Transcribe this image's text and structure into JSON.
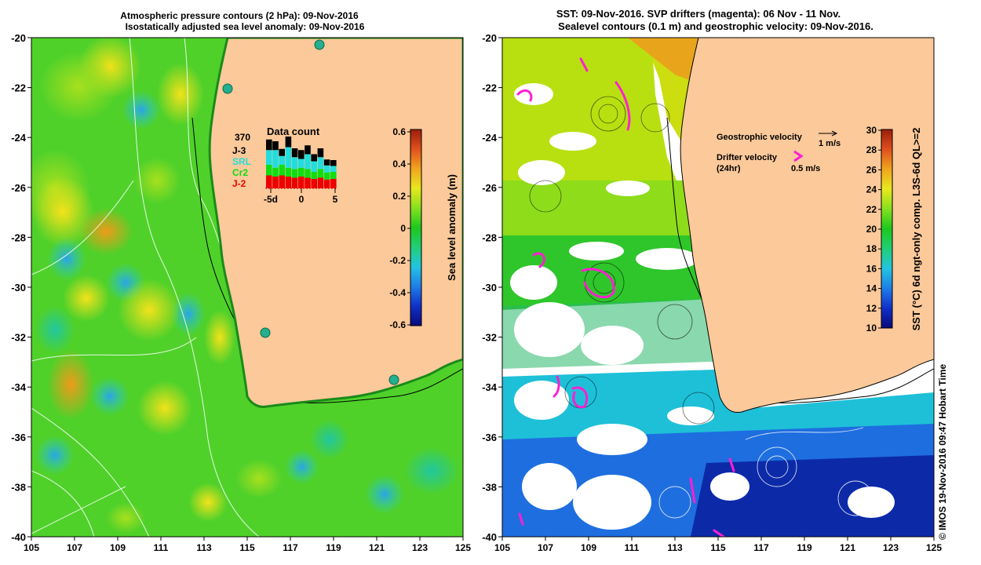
{
  "left_panel": {
    "title_line1": "Atmospheric pressure contours (2 hPa): 09-Nov-2016",
    "title_line2": "Isostatically adjusted sea level anomaly: 09-Nov-2016",
    "lat_ticks": [
      "-20",
      "-22",
      "-24",
      "-26",
      "-28",
      "-30",
      "-32",
      "-34",
      "-36",
      "-38",
      "-40"
    ],
    "lon_ticks": [
      "105",
      "107",
      "109",
      "111",
      "113",
      "115",
      "117",
      "119",
      "121",
      "123",
      "125"
    ],
    "data_count": {
      "title": "Data count",
      "total": "370",
      "legend": [
        {
          "label": "J-3",
          "color": "#000000"
        },
        {
          "label": "SRL",
          "color": "#22dddd"
        },
        {
          "label": "Cr2",
          "color": "#11dd11"
        },
        {
          "label": "J-2",
          "color": "#ee0000"
        }
      ],
      "x_ticks": [
        "-5d",
        "0",
        "5"
      ],
      "bars": [
        {
          "j2": 0.22,
          "cr2": 0.18,
          "srl": 0.25,
          "j3": 0.18
        },
        {
          "j2": 0.2,
          "cr2": 0.15,
          "srl": 0.3,
          "j3": 0.15
        },
        {
          "j2": 0.22,
          "cr2": 0.18,
          "srl": 0.15,
          "j3": 0.12
        },
        {
          "j2": 0.2,
          "cr2": 0.15,
          "srl": 0.35,
          "j3": 0.18
        },
        {
          "j2": 0.18,
          "cr2": 0.15,
          "srl": 0.2,
          "j3": 0.15
        },
        {
          "j2": 0.2,
          "cr2": 0.15,
          "srl": 0.15,
          "j3": 0.15
        },
        {
          "j2": 0.18,
          "cr2": 0.15,
          "srl": 0.25,
          "j3": 0.15
        },
        {
          "j2": 0.16,
          "cr2": 0.12,
          "srl": 0.18,
          "j3": 0.12
        },
        {
          "j2": 0.18,
          "cr2": 0.15,
          "srl": 0.2,
          "j3": 0.15
        },
        {
          "j2": 0.15,
          "cr2": 0.12,
          "srl": 0.12,
          "j3": 0.1
        },
        {
          "j2": 0.16,
          "cr2": 0.12,
          "srl": 0.1,
          "j3": 0.1
        }
      ]
    },
    "colorbar": {
      "label": "Sea level anomaly (m)",
      "ticks": [
        "0.6",
        "0.4",
        "0.2",
        "0",
        "-0.2",
        "-0.4",
        "-0.6"
      ],
      "colors": [
        "#0a0a7a",
        "#1030c8",
        "#1e7ee8",
        "#22c4e0",
        "#1fcf76",
        "#1ec81e",
        "#86e01e",
        "#e8e81e",
        "#f0a51e",
        "#e0501e",
        "#9a1e0a"
      ]
    }
  },
  "right_panel": {
    "title_line1": "SST: 09-Nov-2016. SVP drifters (magenta): 06 Nov - 11 Nov.",
    "title_line2": "Sealevel contours (0.1 m) and geostrophic velocity: 09-Nov-2016.",
    "lat_ticks": [
      "-20",
      "-22",
      "-24",
      "-26",
      "-28",
      "-30",
      "-32",
      "-34",
      "-36",
      "-38",
      "-40"
    ],
    "lon_ticks": [
      "105",
      "107",
      "109",
      "111",
      "113",
      "115",
      "117",
      "119",
      "121",
      "123",
      "125"
    ],
    "legend": {
      "geo_label": "Geostrophic velocity",
      "geo_scale": "1 m/s",
      "drifter_label": "Drifter velocity",
      "drifter_sub": "(24hr)",
      "drifter_scale": "0.5 m/s"
    },
    "colorbar": {
      "label": "SST (°C) 6d ngt-only comp. L3S-6d QL>=2",
      "ticks": [
        "30",
        "28",
        "26",
        "24",
        "22",
        "20",
        "18",
        "16",
        "14",
        "12",
        "10"
      ],
      "colors": [
        "#0a0a7a",
        "#1030c8",
        "#1e7ee8",
        "#22c4e0",
        "#1fcf76",
        "#1ec81e",
        "#86e01e",
        "#e8e81e",
        "#f0a51e",
        "#e0501e",
        "#9a1e0a"
      ]
    }
  },
  "footer": {
    "credit": "© IMOS 19-Nov-2016 09:47 Hobart Time"
  },
  "colors": {
    "land": "#fbc99a",
    "drifter": "#ff1fd0",
    "no_data": "#ffffff"
  }
}
